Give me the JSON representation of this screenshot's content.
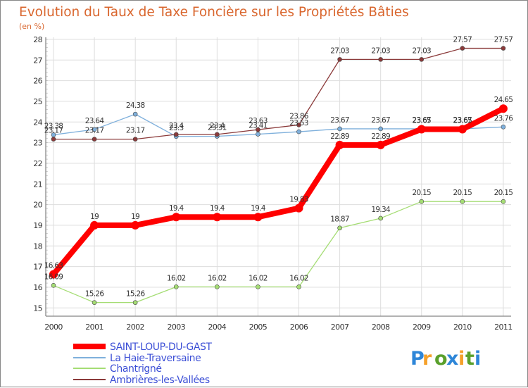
{
  "chart_data": {
    "type": "line",
    "title": "Evolution du Taux de Taxe Foncière sur les Propriétés Bâties",
    "subtitle": "(en %)",
    "xlabel": "",
    "ylabel": "",
    "x": [
      "2000",
      "2001",
      "2002",
      "2003",
      "2004",
      "2005",
      "2006",
      "2007",
      "2008",
      "2009",
      "2010",
      "2011"
    ],
    "yticks": [
      15,
      16,
      17,
      18,
      19,
      20,
      21,
      22,
      23,
      24,
      25,
      26,
      27,
      28
    ],
    "ylim": [
      14.6,
      28.1
    ],
    "grid": true,
    "legend_position": "bottom-left",
    "series": [
      {
        "name": "SAINT-LOUP-DU-GAST",
        "color": "#ff0000",
        "values": [
          16.63,
          19,
          19,
          19.4,
          19.4,
          19.4,
          19.83,
          22.89,
          22.89,
          23.65,
          23.65,
          24.65
        ],
        "labels": [
          "16.63",
          "19",
          "19",
          "19.4",
          "19.4",
          "19.4",
          "19.83",
          "22.89",
          "22.89",
          "23.65",
          "23.65",
          "24.65"
        ]
      },
      {
        "name": "La Haie-Traversaine",
        "color": "#7fb0dc",
        "values": [
          23.38,
          23.64,
          24.38,
          23.3,
          23.31,
          23.41,
          23.53,
          23.67,
          23.67,
          23.67,
          23.67,
          23.76
        ],
        "labels": [
          "23.38",
          "23.64",
          "24.38",
          "23.3",
          "23.31",
          "23.41",
          "23.53",
          "23.67",
          "23.67",
          "23.67",
          "23.67",
          "23.76"
        ]
      },
      {
        "name": "Chantrigné",
        "color": "#a5dd74",
        "values": [
          16.09,
          15.26,
          15.26,
          16.02,
          16.02,
          16.02,
          16.02,
          18.87,
          19.34,
          20.15,
          20.15,
          20.15
        ],
        "labels": [
          "16.09",
          "15.26",
          "15.26",
          "16.02",
          "16.02",
          "16.02",
          "16.02",
          "18.87",
          "19.34",
          "20.15",
          "20.15",
          "20.15"
        ]
      },
      {
        "name": "Ambrières-les-Vallées",
        "color": "#8b3a3a",
        "values": [
          23.17,
          23.17,
          23.17,
          23.4,
          23.4,
          23.63,
          23.86,
          27.03,
          27.03,
          27.03,
          27.57,
          27.57
        ],
        "labels": [
          "23.17",
          "23.17",
          "23.17",
          "23.4",
          "23.4",
          "23.63",
          "23.86",
          "27.03",
          "27.03",
          "27.03",
          "27.57",
          "27.57"
        ]
      }
    ]
  },
  "branding": {
    "logo_letters": [
      "P",
      "r",
      "o",
      "x",
      "i",
      "t",
      "i"
    ],
    "logo_colors": [
      "#2e86d8",
      "#f5a12b",
      "#5aa02c",
      "#2e86d8",
      "#f5a12b",
      "#5aa02c",
      "#2e86d8"
    ]
  }
}
